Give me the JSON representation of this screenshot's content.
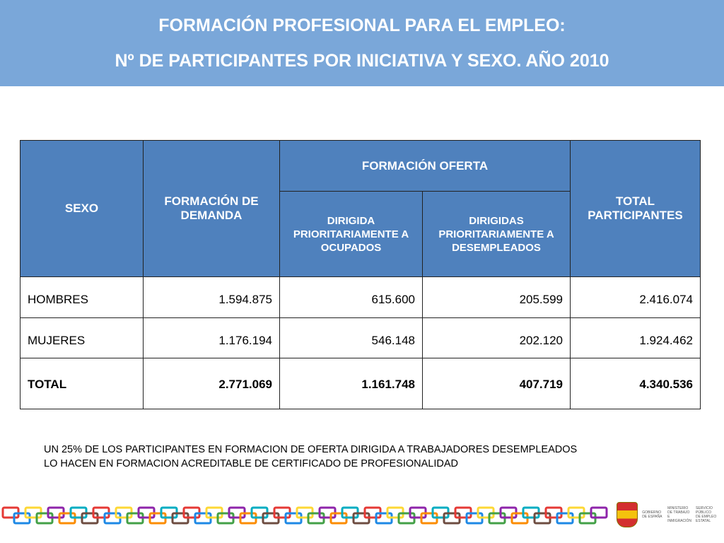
{
  "header": {
    "title_line1": "FORMACIÓN PROFESIONAL PARA EL EMPLEO:",
    "title_line2": "Nº DE PARTICIPANTES POR INICIATIVA Y SEXO. AÑO 2010",
    "background_color": "#7aa7d9"
  },
  "table": {
    "header_color": "#4f81bd",
    "col_sexo": "SEXO",
    "col_demanda": "FORMACIÓN DE DEMANDA",
    "col_oferta": "FORMACIÓN OFERTA",
    "col_ocupados": "DIRIGIDA PRIORITARIAMENTE A OCUPADOS",
    "col_desempleados": "DIRIGIDAS PRIORITARIAMENTE A DESEMPLEADOS",
    "col_total": "TOTAL PARTICIPANTES",
    "rows": [
      {
        "sexo": "HOMBRES",
        "demanda": "1.594.875",
        "ocupados": "615.600",
        "desempleados": "205.599",
        "total": "2.416.074"
      },
      {
        "sexo": "MUJERES",
        "demanda": "1.176.194",
        "ocupados": "546.148",
        "desempleados": "202.120",
        "total": "1.924.462"
      },
      {
        "sexo": "TOTAL",
        "demanda": "2.771.069",
        "ocupados": "1.161.748",
        "desempleados": "407.719",
        "total": "4.340.536"
      }
    ]
  },
  "note": {
    "line1": "UN 25% DE LOS PARTICIPANTES EN FORMACION DE OFERTA DIRIGIDA A TRABAJADORES DESEMPLEADOS",
    "line2": "LO HACEN EN FORMACION ACREDITABLE DE CERTIFICADO DE PROFESIONALIDAD"
  },
  "footer": {
    "decoration": "colored-chain-links",
    "logo_icon": "government-crest-icon",
    "logo_text_1": "GOBIERNO DE ESPAÑA",
    "logo_text_2": "MINISTERIO DE TRABAJO E INMIGRACIÓN",
    "logo_text_3": "SERVICIO PÚBLICO DE EMPLEO ESTATAL"
  }
}
